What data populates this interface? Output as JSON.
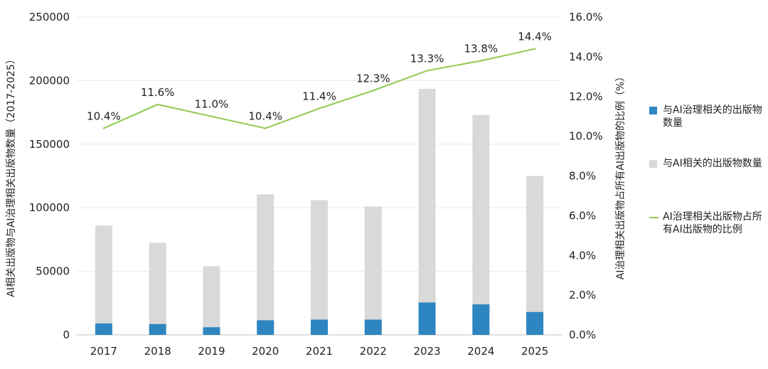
{
  "chart_data": {
    "type": "bar+line",
    "categories": [
      "2017",
      "2018",
      "2019",
      "2020",
      "2021",
      "2022",
      "2023",
      "2024",
      "2025"
    ],
    "bar_series": [
      {
        "name": "与AI相关的出版物数量",
        "color": "#d9d9d9",
        "values": [
          86000,
          72500,
          54000,
          110500,
          106000,
          101000,
          193500,
          173000,
          125000
        ]
      },
      {
        "name": "与AI治理相关的出版物数量",
        "color": "#2e86c1",
        "values": [
          9000,
          8500,
          6000,
          11500,
          12000,
          12000,
          25500,
          24000,
          18000
        ]
      }
    ],
    "line_series": {
      "name": "AI治理相关出版物占所有AI出版物的比例",
      "color": "#8fca4f",
      "values": [
        10.4,
        11.6,
        11.0,
        10.4,
        11.4,
        12.3,
        13.3,
        13.8,
        14.4
      ],
      "labels": [
        "10.4%",
        "11.6%",
        "11.0%",
        "10.4%",
        "11.4%",
        "12.3%",
        "13.3%",
        "13.8%",
        "14.4%"
      ]
    },
    "y_left": {
      "label": "AI相关出版物与AI治理相关出版物数量（2017-2025）",
      "ylim": [
        0,
        250000
      ],
      "ticks": [
        "0",
        "50000",
        "100000",
        "150000",
        "200000",
        "250000"
      ]
    },
    "y_right": {
      "label": "AI治理相关出版物占所有AI出版物的比例（%）",
      "ylim": [
        0,
        16
      ],
      "ticks": [
        "0.0%",
        "2.0%",
        "4.0%",
        "6.0%",
        "8.0%",
        "10.0%",
        "12.0%",
        "14.0%",
        "16.0%"
      ]
    },
    "grid": true,
    "legend_position": "right"
  },
  "legend": {
    "gov_bar": "与AI治理相关的出版物数量",
    "ai_bar": "与AI相关的出版物数量",
    "line": "AI治理相关出版物占所有AI出版物的比例"
  },
  "colors": {
    "gov_bar": "#2e86c1",
    "ai_bar": "#d9d9d9",
    "line": "#8fca4f",
    "grid": "#e6e6e6"
  }
}
